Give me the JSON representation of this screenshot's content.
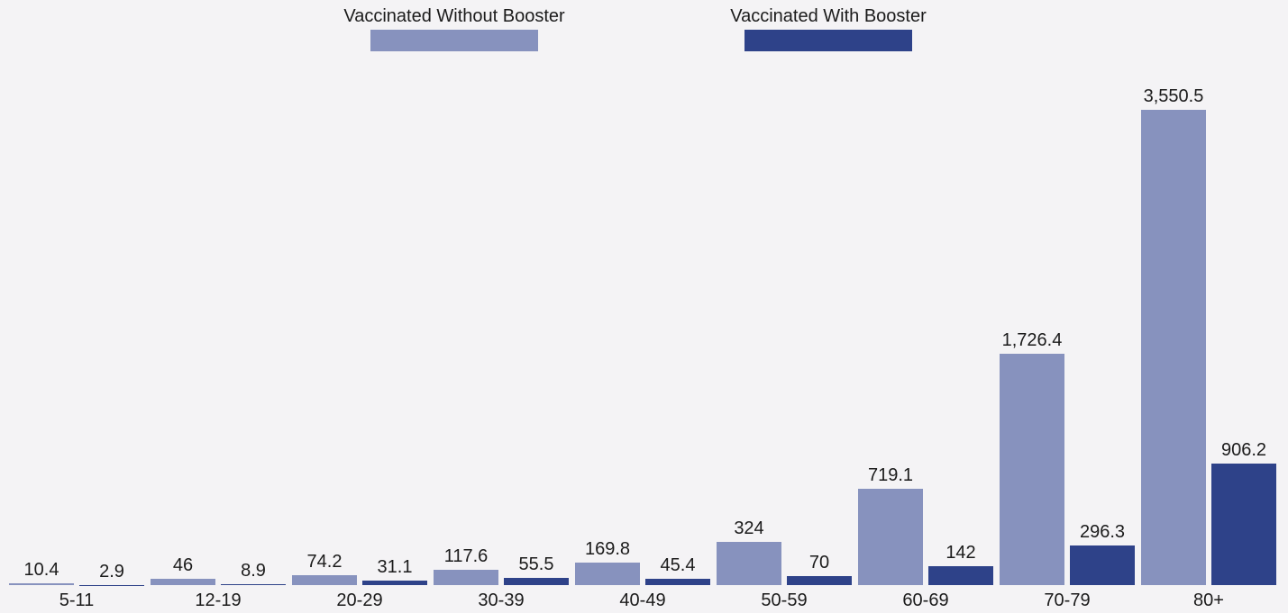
{
  "page": {
    "background_color": "#F4F3F5",
    "text_color": "#1b1b1b"
  },
  "legend": [
    {
      "label": "Vaccinated Without Booster",
      "color": "#8792BE"
    },
    {
      "label": "Vaccinated With Booster",
      "color": "#2E4289"
    }
  ],
  "chart_data": {
    "type": "bar",
    "title": "",
    "xlabel": "",
    "ylabel": "",
    "categories": [
      "5-11",
      "12-19",
      "20-29",
      "30-39",
      "40-49",
      "50-59",
      "60-69",
      "70-79",
      "80+"
    ],
    "series": [
      {
        "name": "Vaccinated Without Booster",
        "color": "#8792BE",
        "values": [
          10.4,
          46,
          74.2,
          117.6,
          169.8,
          324,
          719.1,
          1726.4,
          3550.5
        ],
        "labels": [
          "10.4",
          "46",
          "74.2",
          "117.6",
          "169.8",
          "324",
          "719.1",
          "1,726.4",
          "3,550.5"
        ]
      },
      {
        "name": "Vaccinated With Booster",
        "color": "#2E4289",
        "values": [
          2.9,
          8.9,
          31.1,
          55.5,
          45.4,
          70,
          142,
          296.3,
          906.2
        ],
        "labels": [
          "2.9",
          "8.9",
          "31.1",
          "55.5",
          "45.4",
          "70",
          "142",
          "296.3",
          "906.2"
        ]
      }
    ],
    "ylim": [
      0,
      3550.5
    ],
    "grid": false,
    "axes_visible": false,
    "value_labels": true,
    "legend_position": "top"
  }
}
